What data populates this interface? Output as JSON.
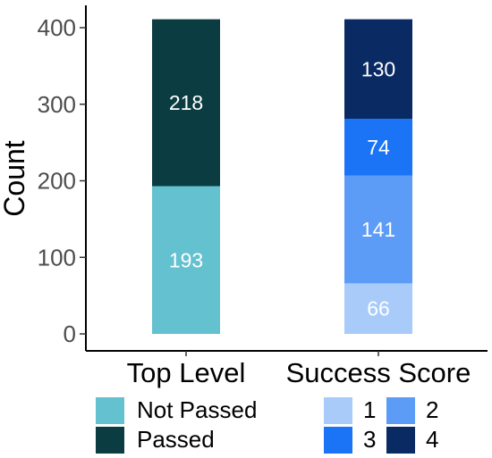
{
  "chart_data": {
    "type": "bar",
    "stacked": true,
    "categories": [
      "Top Level",
      "Success Score"
    ],
    "ylabel": "Count",
    "xlabel": "",
    "ylim": [
      0,
      415
    ],
    "yticks": [
      0,
      100,
      200,
      300,
      400
    ],
    "grid": false,
    "stacks": [
      {
        "category": "Top Level",
        "segments": [
          {
            "name": "Not Passed",
            "value": 193,
            "color": "#64C1CF"
          },
          {
            "name": "Passed",
            "value": 218,
            "color": "#0B3C41"
          }
        ]
      },
      {
        "category": "Success Score",
        "segments": [
          {
            "name": "1",
            "value": 66,
            "color": "#A8CBFA"
          },
          {
            "name": "2",
            "value": 141,
            "color": "#5C9CF7"
          },
          {
            "name": "3",
            "value": 74,
            "color": "#1A74F5"
          },
          {
            "name": "4",
            "value": 130,
            "color": "#0A2A63"
          }
        ]
      }
    ],
    "legends": [
      {
        "placement": "bottom-left",
        "entries": [
          {
            "label": "Not Passed",
            "color": "#64C1CF"
          },
          {
            "label": "Passed",
            "color": "#0B3C41"
          }
        ]
      },
      {
        "placement": "bottom-right",
        "entries": [
          {
            "label": "1",
            "color": "#A8CBFA"
          },
          {
            "label": "2",
            "color": "#5C9CF7"
          },
          {
            "label": "3",
            "color": "#1A74F5"
          },
          {
            "label": "4",
            "color": "#0A2A63"
          }
        ]
      }
    ]
  }
}
